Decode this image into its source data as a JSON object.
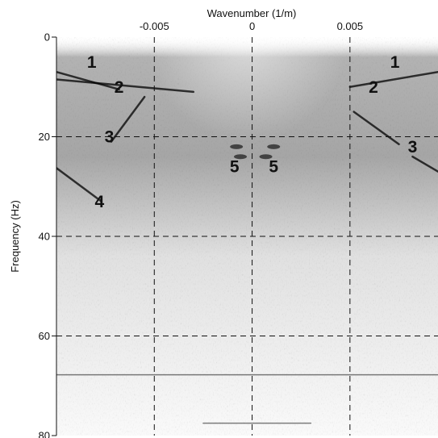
{
  "chart_data": {
    "type": "heatmap",
    "title": "",
    "xlabel": "Wavenumber (1/m)",
    "ylabel": "Frequency (Hz)",
    "xlim": [
      -0.01,
      0.0095
    ],
    "ylim": [
      80,
      0
    ],
    "x_ticks": [
      {
        "value": -0.005,
        "label": "-0.005"
      },
      {
        "value": 0,
        "label": "0"
      },
      {
        "value": 0.005,
        "label": "0.005"
      }
    ],
    "y_ticks": [
      {
        "value": 0,
        "label": "0"
      },
      {
        "value": 20,
        "label": "20"
      },
      {
        "value": 40,
        "label": "40"
      },
      {
        "value": 60,
        "label": "60"
      },
      {
        "value": 80,
        "label": "80"
      }
    ],
    "grid": true,
    "colormap": "grayscale",
    "annotations": [
      {
        "label": "1",
        "x": -0.0082,
        "y": 5
      },
      {
        "label": "2",
        "x": -0.0068,
        "y": 10
      },
      {
        "label": "3",
        "x": -0.0073,
        "y": 20
      },
      {
        "label": "4",
        "x": -0.0078,
        "y": 33
      },
      {
        "label": "5",
        "x": -0.0009,
        "y": 26
      },
      {
        "label": "5",
        "x": 0.0011,
        "y": 26
      },
      {
        "label": "1",
        "x": 0.0073,
        "y": 5
      },
      {
        "label": "2",
        "x": 0.0062,
        "y": 10
      },
      {
        "label": "3",
        "x": 0.0082,
        "y": 22
      }
    ],
    "features": [
      {
        "kind": "line",
        "points": [
          [
            -0.01,
            7
          ],
          [
            -0.0068,
            10.5
          ]
        ]
      },
      {
        "kind": "line",
        "points": [
          [
            -0.01,
            8.5
          ],
          [
            -0.003,
            11
          ]
        ]
      },
      {
        "kind": "line",
        "points": [
          [
            -0.0055,
            12
          ],
          [
            -0.0072,
            21
          ]
        ]
      },
      {
        "kind": "line",
        "points": [
          [
            -0.0101,
            26
          ],
          [
            -0.0077,
            33
          ]
        ]
      },
      {
        "kind": "line",
        "points": [
          [
            0.005,
            10
          ],
          [
            0.0095,
            7
          ]
        ]
      },
      {
        "kind": "line",
        "points": [
          [
            0.0052,
            15
          ],
          [
            0.0075,
            21.5
          ]
        ]
      },
      {
        "kind": "line",
        "points": [
          [
            0.0082,
            24
          ],
          [
            0.0095,
            27
          ]
        ]
      },
      {
        "kind": "line",
        "points": [
          [
            -0.0102,
            67.8
          ],
          [
            0.0095,
            67.8
          ]
        ]
      },
      {
        "kind": "line",
        "points": [
          [
            -0.0025,
            77.5
          ],
          [
            0.003,
            77.5
          ]
        ]
      },
      {
        "kind": "blob",
        "points": [
          [
            -0.0008,
            22
          ],
          [
            0.0011,
            22
          ],
          [
            -0.0006,
            24
          ],
          [
            0.0007,
            24
          ]
        ]
      }
    ]
  }
}
